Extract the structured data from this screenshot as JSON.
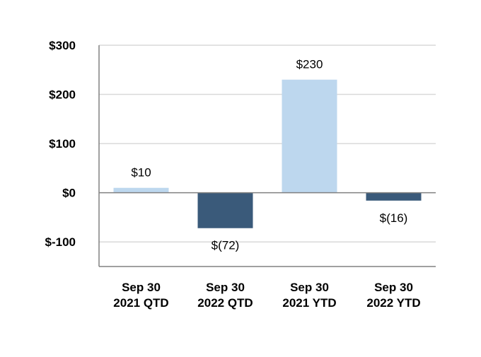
{
  "chart_data": {
    "type": "bar",
    "categories": [
      [
        "Sep 30",
        "2021 QTD"
      ],
      [
        "Sep 30",
        "2022 QTD"
      ],
      [
        "Sep 30",
        "2021 YTD"
      ],
      [
        "Sep 30",
        "2022 YTD"
      ]
    ],
    "values": [
      10,
      -72,
      230,
      -16
    ],
    "data_labels": [
      "$10",
      "$(72)",
      "$230",
      "$(16)"
    ],
    "bar_colors": [
      "#bdd7ee",
      "#3a5a7a",
      "#bdd7ee",
      "#3a5a7a"
    ],
    "ylim": [
      -150,
      300
    ],
    "yticks": [
      300,
      200,
      100,
      0,
      -100
    ],
    "ytick_labels": [
      "$300",
      "$200",
      "$100",
      "$0",
      "$-100"
    ],
    "grid": true,
    "legend": "none",
    "title": "",
    "xlabel": "",
    "ylabel": "",
    "colors": {
      "grid": "#d9d9d9",
      "axis": "#808080",
      "zero_line": "#808080"
    }
  }
}
